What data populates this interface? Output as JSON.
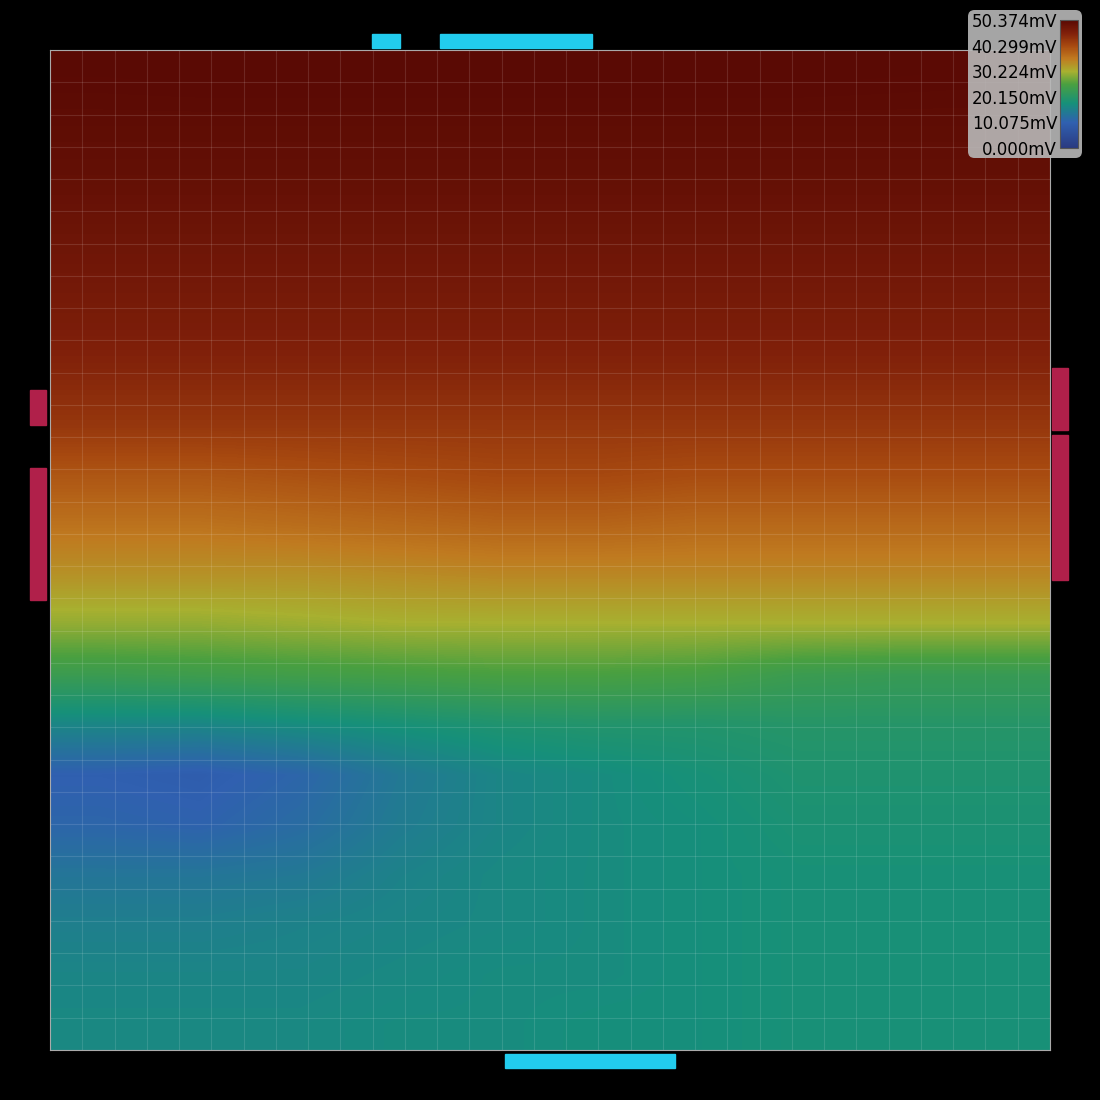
{
  "chart_data": {
    "type": "heatmap",
    "tick_labels": false,
    "cells": [
      [
        50.2,
        50.3,
        50.3,
        50.3,
        50.3,
        50.3,
        50.3,
        50.3,
        50.2,
        50.1
      ],
      [
        49.6,
        49.6,
        49.6,
        49.6,
        49.6,
        49.6,
        49.6,
        49.6,
        49.6,
        49.6
      ],
      [
        49,
        49,
        49,
        49,
        49,
        49,
        49,
        49,
        49,
        49
      ],
      [
        48,
        48,
        48,
        48,
        48,
        48,
        48,
        48,
        48,
        48
      ],
      [
        47,
        47,
        47,
        47,
        47,
        47,
        47,
        47,
        47,
        47
      ],
      [
        46,
        46,
        46,
        46,
        46,
        46,
        46,
        46,
        46,
        46
      ],
      [
        44.5,
        44.5,
        44.5,
        44.5,
        44.5,
        44.5,
        44.5,
        44.5,
        44.5,
        44.5
      ],
      [
        42.5,
        42.5,
        42.5,
        42.5,
        42.5,
        42.5,
        42.5,
        42.5,
        42.5,
        42.5
      ],
      [
        39,
        39,
        39.5,
        40,
        40.5,
        40.5,
        40,
        40,
        40,
        40
      ],
      [
        36,
        36,
        36.5,
        37,
        37.5,
        37.5,
        37,
        37,
        37,
        37
      ],
      [
        33,
        33,
        33,
        33.5,
        34,
        34,
        34,
        34,
        34,
        34
      ],
      [
        29,
        29,
        29.5,
        30,
        30,
        30,
        30,
        30,
        30,
        30
      ],
      [
        23,
        23.5,
        24,
        24.5,
        25,
        25,
        24.5,
        23,
        22.5,
        22.5
      ],
      [
        16,
        16,
        17,
        18,
        19,
        19.5,
        19.5,
        20,
        20,
        20
      ],
      [
        10,
        9.5,
        11,
        14,
        16,
        17,
        18,
        19,
        19,
        19
      ],
      [
        11,
        10.5,
        12,
        14.5,
        16,
        17,
        17.5,
        18.5,
        18.5,
        18.5
      ],
      [
        13.5,
        13.5,
        14,
        15.5,
        16.5,
        17,
        17.5,
        18,
        18,
        18
      ],
      [
        15,
        15,
        15.5,
        16,
        16.5,
        17,
        17.5,
        18,
        18,
        18
      ],
      [
        16,
        16,
        16,
        16.5,
        17,
        17,
        17.5,
        18,
        18,
        18
      ],
      [
        16.5,
        16.5,
        16.5,
        17,
        17,
        17.5,
        17.5,
        18,
        18,
        18
      ]
    ],
    "colorbar": {
      "range": [
        0,
        50.374
      ],
      "ticks": [
        {
          "value": 50.374,
          "label": "50.374mV"
        },
        {
          "value": 40.299,
          "label": "40.299mV"
        },
        {
          "value": 30.224,
          "label": "30.224mV"
        },
        {
          "value": 20.15,
          "label": "20.150mV"
        },
        {
          "value": 10.075,
          "label": "10.075mV"
        },
        {
          "value": 0,
          "label": "0.000mV"
        }
      ]
    }
  }
}
